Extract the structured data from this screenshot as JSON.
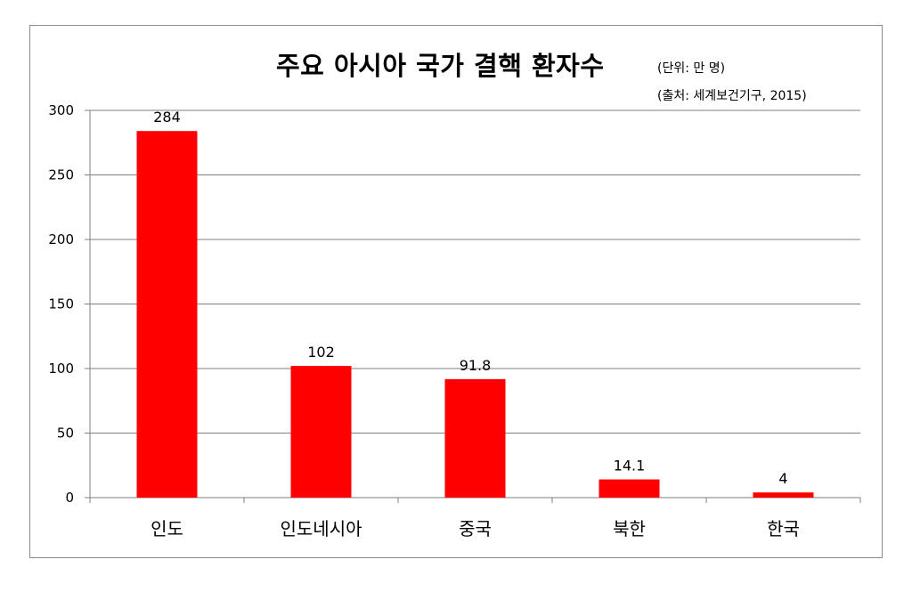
{
  "chart_data": {
    "type": "bar",
    "title": "주요 아시아 국가 결핵 환자수",
    "unit_note": "(단위: 만 명)",
    "source_note": "(출처: 세계보건기구, 2015)",
    "categories": [
      "인도",
      "인도네시아",
      "중국",
      "북한",
      "한국"
    ],
    "values": [
      284,
      102,
      91.8,
      14.1,
      4
    ],
    "value_labels": [
      "284",
      "102",
      "91.8",
      "14.1",
      "4"
    ],
    "y_ticks": [
      "0",
      "50",
      "100",
      "150",
      "200",
      "250",
      "300"
    ],
    "ylim": [
      0,
      300
    ],
    "grid": true,
    "legend": "none",
    "bar_color": "#ff0000",
    "grid_color": "#7f7f7f"
  }
}
